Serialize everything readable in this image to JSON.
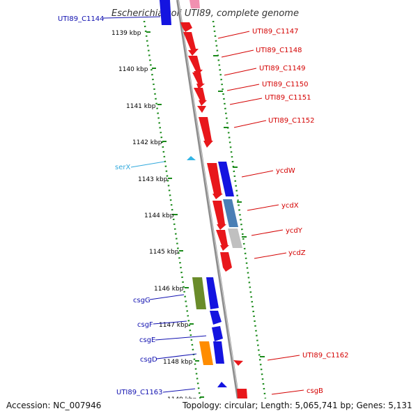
{
  "title": "Escherichia coli UTI89, complete genome",
  "footer": {
    "accession": "Accession: NC_007946",
    "summary": "Topology: circular; Length: 5,065,741 bp; Genes: 5,131"
  },
  "colors": {
    "backbone": "#8c8c8c",
    "tick_track": "#1a8a1a",
    "red_gene": "#e8171b",
    "blue_gene": "#1414e0",
    "pink_gene": "#f090b0",
    "steelblue_gene": "#4a7fb5",
    "gray_gene": "#c0c0c0",
    "olive_gene": "#6a8c2a",
    "orange_gene": "#ff8c00",
    "trna": "#33b5e5",
    "label_red": "#d40000",
    "label_blue": "#1010b0",
    "label_cyan": "#33aadd"
  },
  "kbp_ticks": [
    "1139 kbp",
    "1140 kbp",
    "1141 kbp",
    "1142 kbp",
    "1143 kbp",
    "1144 kbp",
    "1145 kbp",
    "1146 kbp",
    "1147 kbp",
    "1148 kbp",
    "1149 kbp"
  ],
  "labels_right": [
    "UTI89_C1147",
    "UTI89_C1148",
    "UTI89_C1149",
    "UTI89_C1150",
    "UTI89_C1151",
    "UTI89_C1152",
    "ycdW",
    "ycdX",
    "ycdY",
    "ycdZ",
    "UTI89_C1162",
    "csgB"
  ],
  "labels_left": [
    "UTI89_C1144",
    "serX",
    "csgG",
    "csgF",
    "csgE",
    "csgD",
    "UTI89_C1163"
  ]
}
